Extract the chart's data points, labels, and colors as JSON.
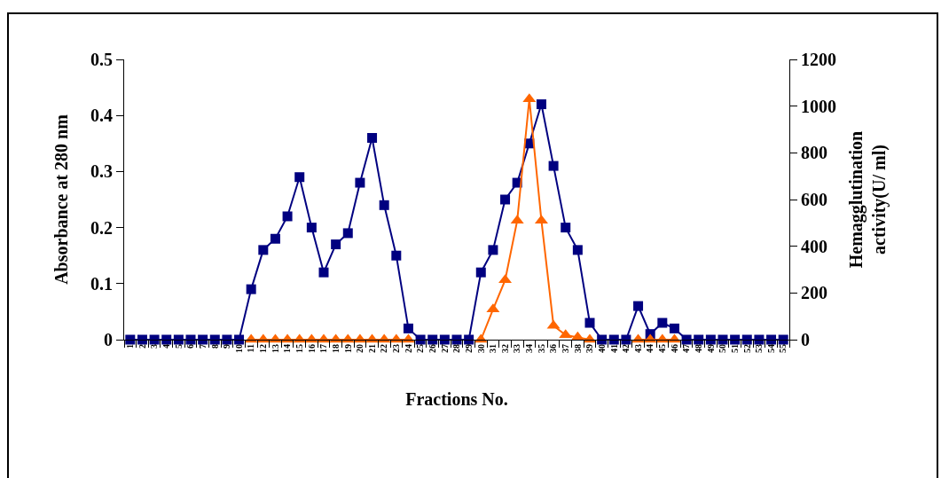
{
  "chart_data": {
    "type": "line",
    "xlabel": "Fractions No.",
    "ylabel": "Absorbance at 280 nm",
    "y2label": "Hemagglutination activity(U/ ml)",
    "categories": [
      "1",
      "2",
      "3",
      "4",
      "5",
      "6",
      "7",
      "8",
      "9",
      "10",
      "11",
      "12",
      "13",
      "14",
      "15",
      "16",
      "17",
      "18",
      "19",
      "20",
      "21",
      "22",
      "23",
      "24",
      "25",
      "26",
      "27",
      "28",
      "29",
      "30",
      "31",
      "32",
      "33",
      "34",
      "35",
      "36",
      "37",
      "38",
      "39",
      "40",
      "41",
      "42",
      "43",
      "44",
      "45",
      "46",
      "47",
      "48",
      "49",
      "50",
      "51",
      "52",
      "53",
      "54",
      "55"
    ],
    "series": [
      {
        "color": "#000080",
        "marker": "square",
        "values": [
          0,
          0,
          0,
          0,
          0,
          0,
          0,
          0,
          0,
          0,
          0.09,
          0.16,
          0.18,
          0.22,
          0.29,
          0.2,
          0.12,
          0.17,
          0.19,
          0.28,
          0.36,
          0.24,
          0.15,
          0.02,
          0,
          0,
          0,
          0,
          0,
          0.12,
          0.16,
          0.25,
          0.28,
          0.35,
          0.42,
          0.31,
          0.2,
          0.16,
          0.03,
          0,
          0,
          0,
          0.06,
          0.01,
          0.03,
          0.02,
          0,
          0,
          0,
          0,
          0,
          0,
          0,
          0,
          0
        ]
      },
      {
        "color": "#ff6600",
        "marker": "triangle",
        "axis": "y2",
        "values": [
          null,
          null,
          null,
          null,
          null,
          null,
          null,
          null,
          null,
          null,
          0,
          0,
          0,
          0,
          0,
          0,
          0,
          0,
          0,
          0,
          0,
          0,
          0,
          0,
          null,
          null,
          null,
          null,
          null,
          0,
          130,
          255,
          510,
          1030,
          510,
          60,
          20,
          10,
          0,
          null,
          null,
          null,
          0,
          0,
          0,
          0,
          null,
          null,
          null,
          null,
          null,
          null,
          null,
          null,
          null
        ]
      }
    ],
    "ylim": [
      0,
      0.5
    ],
    "yticks": [
      0,
      0.1,
      0.2,
      0.3,
      0.4,
      0.5
    ],
    "y2lim": [
      0,
      1200
    ],
    "y2ticks": [
      0,
      200,
      400,
      600,
      800,
      1000,
      1200
    ],
    "grid": false,
    "line_style": "solid"
  }
}
